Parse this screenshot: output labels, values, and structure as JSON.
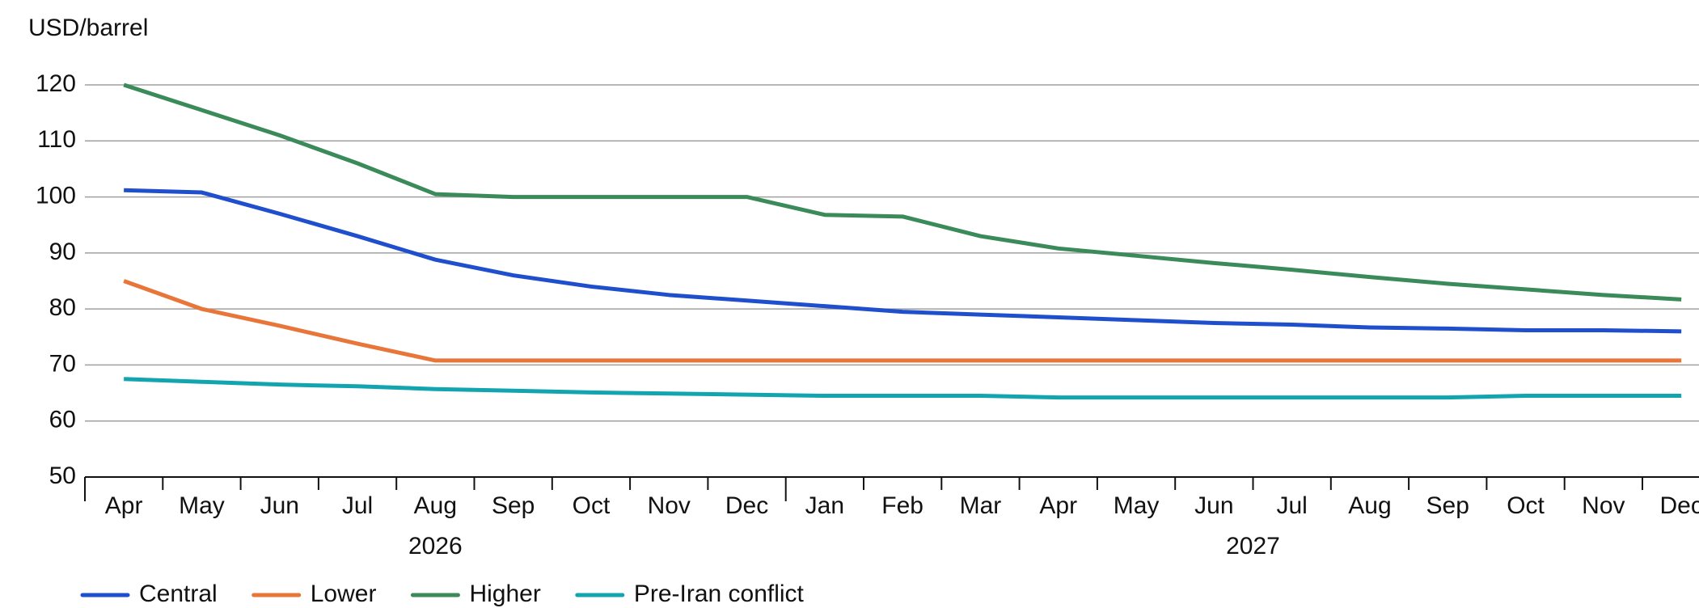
{
  "chart_data": {
    "type": "line",
    "y_label": "USD/barrel",
    "groups": [
      {
        "label": "2026",
        "categories": [
          "Apr",
          "May",
          "Jun",
          "Jul",
          "Aug",
          "Sep",
          "Oct",
          "Nov",
          "Dec"
        ]
      },
      {
        "label": "2027",
        "categories": [
          "Jan",
          "Feb",
          "Mar",
          "Apr",
          "May",
          "Jun",
          "Jul",
          "Aug",
          "Sep",
          "Oct",
          "Nov",
          "Dec"
        ]
      }
    ],
    "ylim": [
      50,
      120
    ],
    "yticks": [
      50,
      60,
      70,
      80,
      90,
      100,
      110,
      120
    ],
    "grid": true,
    "legend": "bottom",
    "series": [
      {
        "name": "Central",
        "color": "#1f4fcc",
        "values": [
          101.2,
          100.8,
          97,
          93,
          88.8,
          86,
          84,
          82.5,
          81.5,
          80.5,
          79.5,
          79,
          78.5,
          78,
          77.5,
          77.2,
          76.7,
          76.5,
          76.2,
          76.2,
          76
        ]
      },
      {
        "name": "Lower",
        "color": "#e8763a",
        "values": [
          85,
          80,
          77,
          73.8,
          70.8,
          70.8,
          70.8,
          70.8,
          70.8,
          70.8,
          70.8,
          70.8,
          70.8,
          70.8,
          70.8,
          70.8,
          70.8,
          70.8,
          70.8,
          70.8,
          70.8
        ]
      },
      {
        "name": "Higher",
        "color": "#3a8a5a",
        "values": [
          120,
          115.5,
          111,
          106,
          100.5,
          100,
          100,
          100,
          100,
          96.8,
          96.5,
          93,
          90.8,
          89.5,
          88.2,
          87,
          85.7,
          84.5,
          83.5,
          82.5,
          81.7
        ]
      },
      {
        "name": "Pre-Iran conflict",
        "color": "#12a5b0",
        "values": [
          67.5,
          67,
          66.5,
          66.2,
          65.7,
          65.4,
          65.1,
          64.9,
          64.7,
          64.5,
          64.5,
          64.5,
          64.2,
          64.2,
          64.2,
          64.2,
          64.2,
          64.2,
          64.5,
          64.5,
          64.5
        ]
      }
    ]
  }
}
